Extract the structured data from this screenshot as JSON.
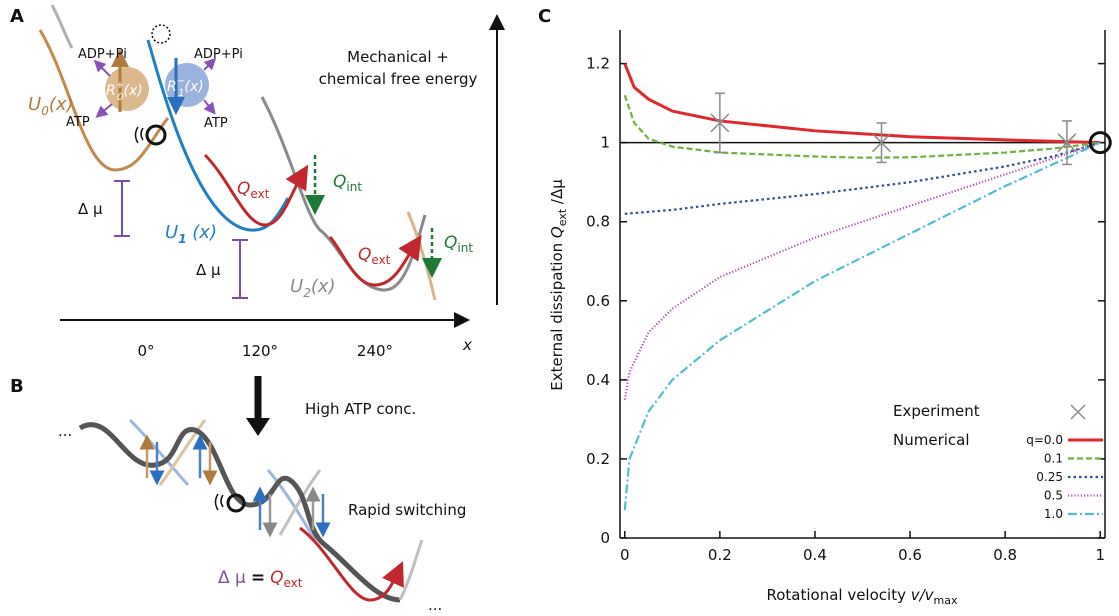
{
  "panel_a": {
    "letter": "A",
    "energy_axis": [
      "Mechanical +",
      "chemical free energy"
    ],
    "angles": [
      "0°",
      "120°",
      "240°"
    ],
    "x_axis": "x",
    "u0": {
      "main": "U",
      "sub": "0",
      "arg": "(x)"
    },
    "u1": {
      "main": "U",
      "sub": "1",
      "arg": " (x)"
    },
    "u2": {
      "main": "U",
      "sub": "2",
      "arg": "(x)"
    },
    "r0": {
      "main": "R",
      "sup": "+",
      "sub": "0",
      "arg": "(x)"
    },
    "r1": {
      "main": "R",
      "sup": "−",
      "sub": "1",
      "arg": "(x)"
    },
    "adp": [
      "ADP+Pi",
      "ADP+Pi"
    ],
    "atp": [
      "ATP",
      "ATP"
    ],
    "q_ext": [
      {
        "main": "Q",
        "sub": "ext"
      },
      {
        "main": "Q",
        "sub": "ext"
      }
    ],
    "q_int": [
      {
        "main": "Q",
        "sub": "int"
      },
      {
        "main": "Q",
        "sub": "int"
      }
    ],
    "delta_mu": [
      "Δ μ",
      "Δ μ"
    ]
  },
  "panel_b": {
    "letter": "B",
    "condition": "High ATP conc.",
    "switching": "Rapid switching",
    "relation": {
      "lhs": "Δ μ",
      "eq": "=",
      "rhs_main": "Q",
      "rhs_sub": "ext"
    },
    "ellipses": [
      "...",
      "..."
    ]
  },
  "chart_data": {
    "type": "line",
    "panel_letter": "C",
    "ylabel": [
      "External dissipation ",
      "Q",
      "ext",
      " /Δμ"
    ],
    "xlabel": [
      "Rotational velocity ",
      "v/v",
      "max"
    ],
    "xlim": [
      -0.01,
      1.01
    ],
    "ylim": [
      0,
      1.285
    ],
    "xticks": [
      0,
      0.2,
      0.4,
      0.6,
      0.8,
      1
    ],
    "yticks": [
      0,
      0.2,
      0.4,
      0.6,
      0.8,
      1,
      1.2
    ],
    "reference_line": 1,
    "highlight": {
      "x": 1,
      "y": 1
    },
    "legend": {
      "position": "lower right",
      "numerical": "Numerical"
    },
    "experiment": {
      "name": "Experiment",
      "color": "#8a8a8a",
      "x": [
        0.2,
        0.54,
        0.93
      ],
      "values": [
        1.05,
        1.0,
        1.0
      ],
      "errors": [
        0.075,
        0.05,
        0.055
      ]
    },
    "series": [
      {
        "name": "q=0.0",
        "color": "#e0272a",
        "style": "solid",
        "x": [
          0,
          0.02,
          0.05,
          0.1,
          0.2,
          0.4,
          0.6,
          0.8,
          1
        ],
        "values": [
          1.2,
          1.14,
          1.11,
          1.08,
          1.055,
          1.03,
          1.015,
          1.007,
          1.0
        ]
      },
      {
        "name": "0.1",
        "color": "#6db33f",
        "style": "dashed",
        "x": [
          0,
          0.02,
          0.05,
          0.1,
          0.2,
          0.4,
          0.5,
          0.6,
          0.8,
          0.9,
          1
        ],
        "values": [
          1.12,
          1.05,
          1.01,
          0.99,
          0.975,
          0.965,
          0.962,
          0.963,
          0.975,
          0.985,
          1.0
        ]
      },
      {
        "name": "0.25",
        "color": "#2b4d9b",
        "style": "dotted",
        "x": [
          0,
          0.1,
          0.2,
          0.4,
          0.6,
          0.8,
          0.9,
          1
        ],
        "values": [
          0.82,
          0.83,
          0.845,
          0.87,
          0.9,
          0.94,
          0.965,
          1.0
        ]
      },
      {
        "name": "0.5",
        "color": "#b04fb0",
        "style": "fine-dotted",
        "x": [
          0,
          0.01,
          0.05,
          0.1,
          0.2,
          0.4,
          0.6,
          0.8,
          1
        ],
        "values": [
          0.35,
          0.42,
          0.52,
          0.58,
          0.66,
          0.76,
          0.84,
          0.92,
          1.0
        ]
      },
      {
        "name": "1.0",
        "color": "#4fbfd0",
        "style": "dashdot",
        "x": [
          0,
          0.01,
          0.05,
          0.1,
          0.2,
          0.4,
          0.6,
          0.8,
          1
        ],
        "values": [
          0.07,
          0.2,
          0.32,
          0.4,
          0.5,
          0.65,
          0.77,
          0.89,
          1.0
        ]
      }
    ]
  }
}
